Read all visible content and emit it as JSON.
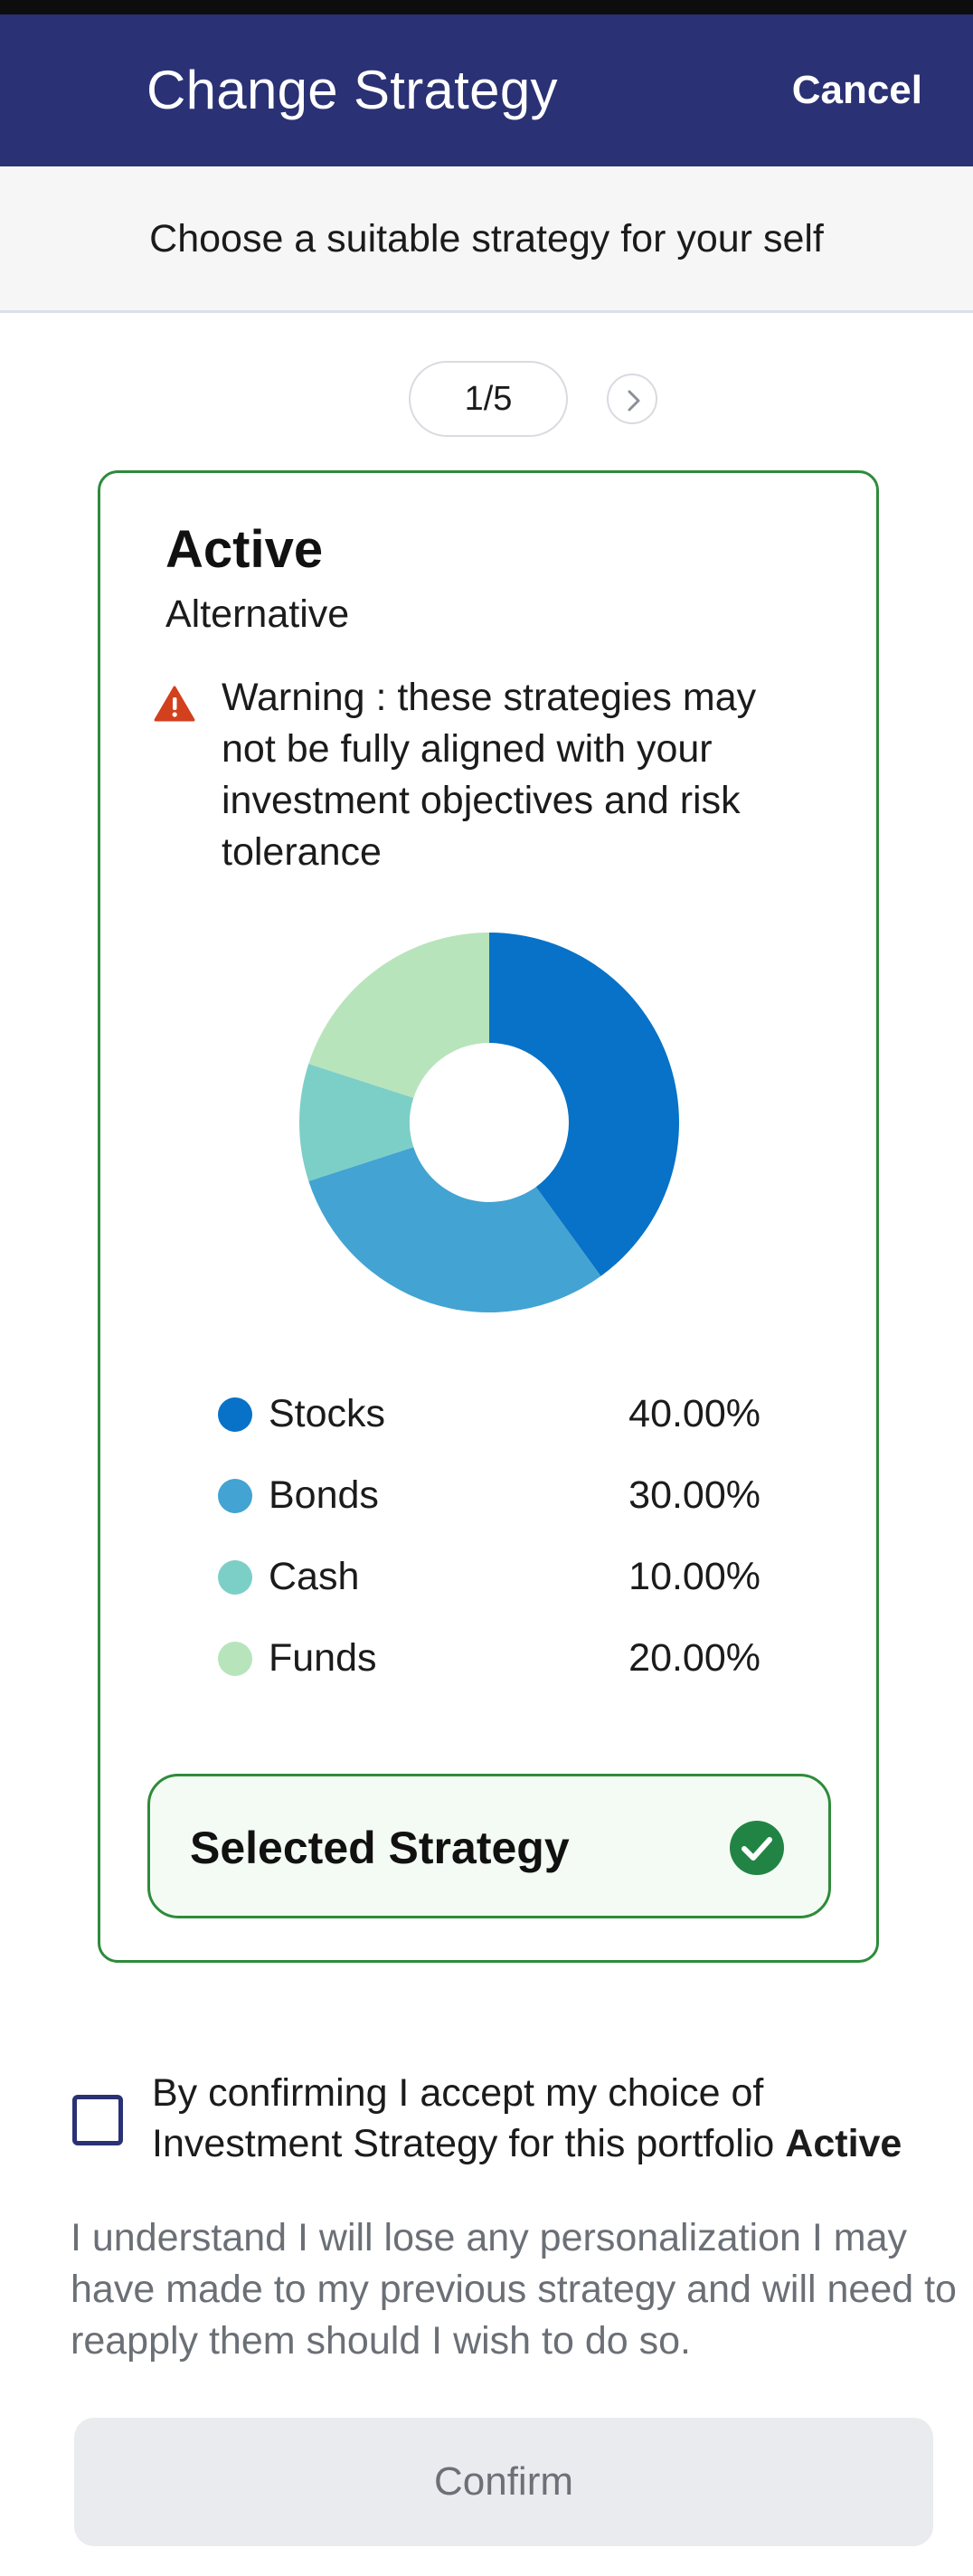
{
  "header": {
    "title": "Change Strategy",
    "cancel_label": "Cancel",
    "background": "#2a3174"
  },
  "subheader": {
    "text": "Choose a suitable strategy for your self"
  },
  "pager": {
    "text": "1/5",
    "next_icon": "chevron-right-icon"
  },
  "strategy": {
    "title": "Active",
    "subtitle": "Alternative",
    "warning_icon": "warning-triangle-icon",
    "warning_text": "Warning : these strategies may not be fully aligned with your investment objectives and risk tolerance",
    "selected_label": "Selected Strategy",
    "selected_icon": "check-circle-icon",
    "border_color": "#2e8b3a"
  },
  "chart_data": {
    "type": "pie",
    "donut": true,
    "categories": [
      "Stocks",
      "Bonds",
      "Cash",
      "Funds"
    ],
    "values": [
      40,
      30,
      10,
      20
    ],
    "value_labels": [
      "40.00%",
      "30.00%",
      "10.00%",
      "20.00%"
    ],
    "colors": [
      "#0772c7",
      "#43a3d2",
      "#7ccfc7",
      "#b8e4bc"
    ]
  },
  "confirm": {
    "checkbox_checked": false,
    "text_prefix": "By confirming I accept my choice of Investment Strategy for this portfolio",
    "text_strategy": "Active",
    "info": "I understand I will lose any personalization I may have made to my previous strategy and will need to reapply them should I wish to do so.",
    "button_label": "Confirm"
  }
}
